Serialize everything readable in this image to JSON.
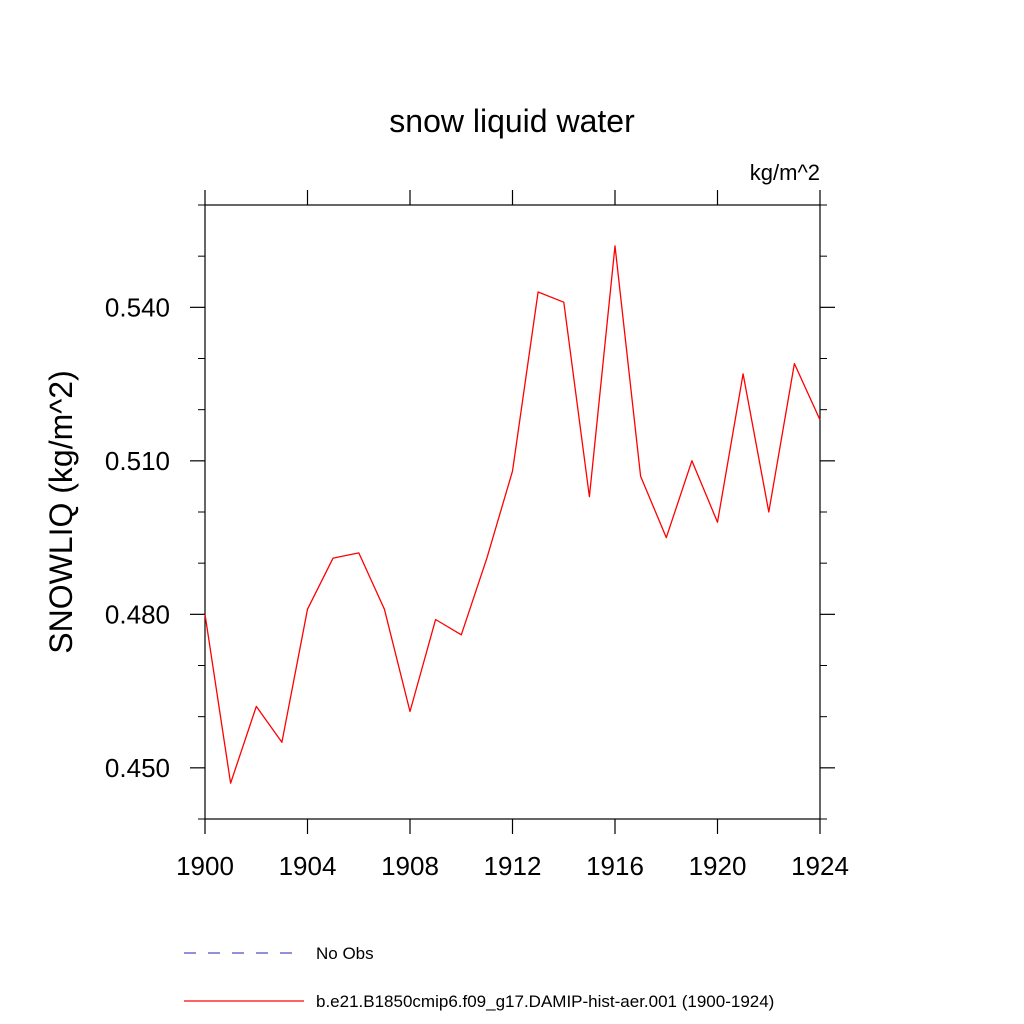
{
  "chart_data": {
    "type": "line",
    "title": "snow liquid water",
    "units": "kg/m^2",
    "ylabel": "SNOWLIQ  (kg/m^2)",
    "xlabel": "",
    "xlim": [
      1900,
      1924
    ],
    "ylim": [
      0.44,
      0.56
    ],
    "x_ticks": [
      1900,
      1904,
      1908,
      1912,
      1916,
      1920,
      1924
    ],
    "x_tick_labels": [
      "1900",
      "1904",
      "1908",
      "1912",
      "1916",
      "1920",
      "1924"
    ],
    "y_ticks": [
      0.45,
      0.48,
      0.51,
      0.54
    ],
    "y_tick_labels": [
      "0.450",
      "0.480",
      "0.510",
      "0.540"
    ],
    "grid": false,
    "legend_placement": "bottom",
    "series": [
      {
        "name": "b.e21.B1850cmip6.f09_g17.DAMIP-hist-aer.001 (1900-1924)",
        "color": "#ff0000",
        "style": "solid",
        "x": [
          1900,
          1901,
          1902,
          1903,
          1904,
          1905,
          1906,
          1907,
          1908,
          1909,
          1910,
          1911,
          1912,
          1913,
          1914,
          1915,
          1916,
          1917,
          1918,
          1919,
          1920,
          1921,
          1922,
          1923,
          1924
        ],
        "values": [
          0.48,
          0.447,
          0.462,
          0.455,
          0.481,
          0.491,
          0.492,
          0.481,
          0.461,
          0.479,
          0.476,
          0.491,
          0.508,
          0.543,
          0.541,
          0.503,
          0.552,
          0.507,
          0.495,
          0.51,
          0.498,
          0.527,
          0.5,
          0.529,
          0.518
        ]
      }
    ],
    "legend": [
      {
        "label": "No Obs",
        "color": "#6b6bcf",
        "style": "dashed"
      },
      {
        "label": "b.e21.B1850cmip6.f09_g17.DAMIP-hist-aer.001 (1900-1924)",
        "color": "#ff0000",
        "style": "solid"
      }
    ]
  }
}
